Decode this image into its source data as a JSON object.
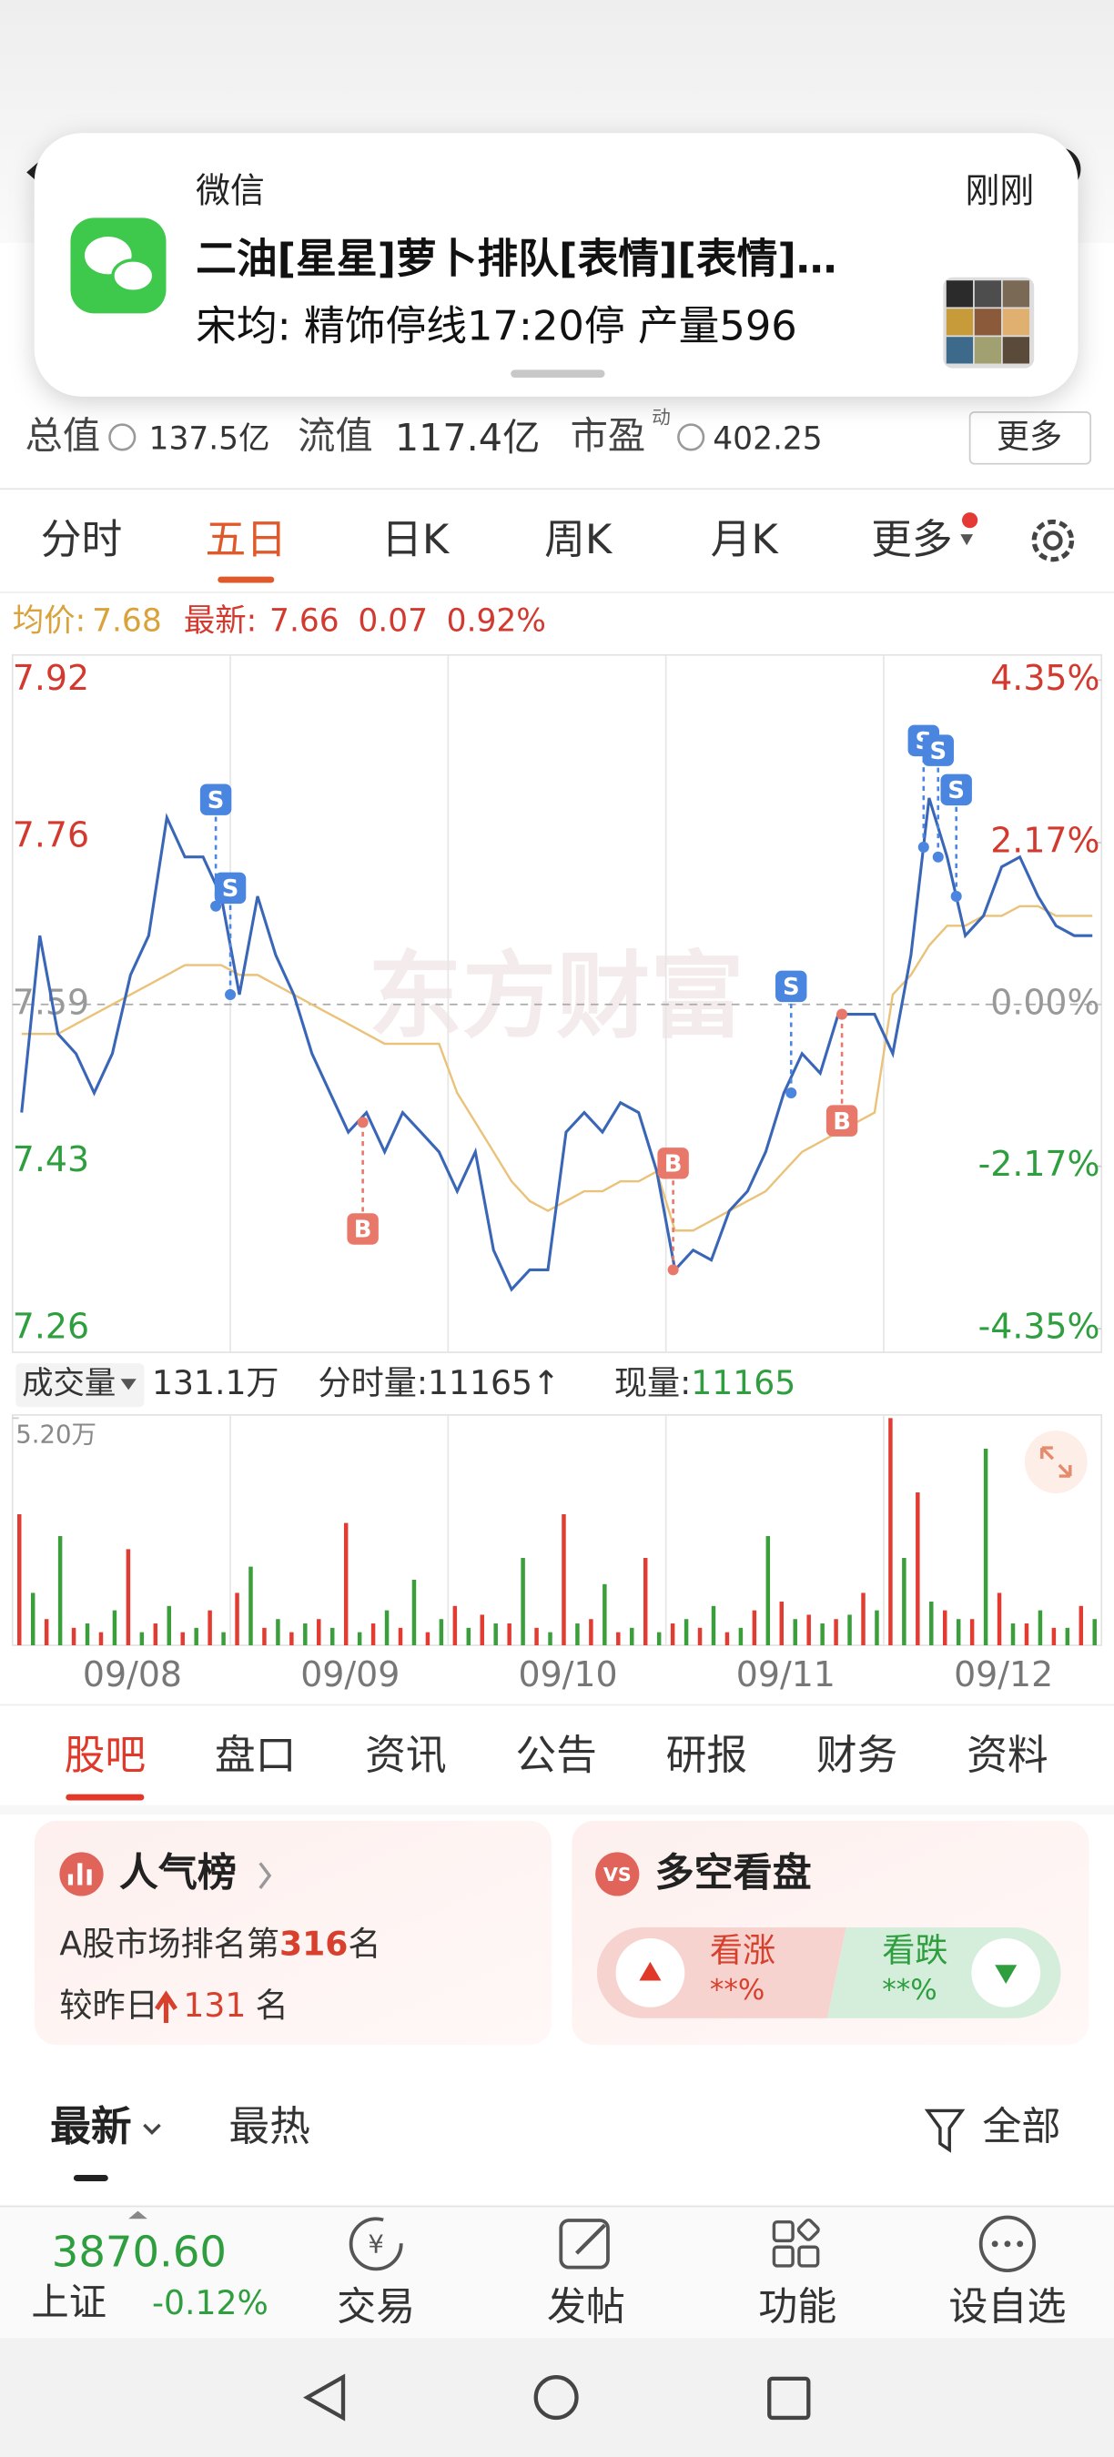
{
  "notification": {
    "app": "微信",
    "time": "刚刚",
    "title": "二油[星星]萝卜排队[表情][表情]…",
    "body": "宋均: 精饰停线17:20停 产量596"
  },
  "stats": {
    "total_label": "总值",
    "total_value": "137.5亿",
    "float_label": "流值",
    "float_value": "117.4亿",
    "pe_label": "市盈",
    "pe_sup": "动",
    "pe_value": "402.25",
    "more": "更多"
  },
  "tabs": {
    "items": [
      "分时",
      "五日",
      "日K",
      "周K",
      "月K",
      "更多"
    ],
    "active": 1
  },
  "quote": {
    "avg_label": "均价:",
    "avg": "7.68",
    "last_label": "最新:",
    "last": "7.66",
    "change": "0.07",
    "pct": "0.92%"
  },
  "watermark": "东方财富",
  "chart_data": [
    {
      "type": "line",
      "days": [
        "09/08",
        "09/09",
        "09/10",
        "09/11",
        "09/12"
      ],
      "series": [
        {
          "color": "#3a66b8",
          "values": [
            7.48,
            7.66,
            7.56,
            7.54,
            7.5,
            7.54,
            7.62,
            7.66,
            7.78,
            7.74,
            7.74,
            7.7,
            7.6,
            7.7,
            7.64,
            7.6,
            7.54,
            7.5,
            7.46,
            7.48,
            7.44,
            7.48,
            7.46,
            7.44,
            7.4,
            7.44,
            7.34,
            7.3,
            7.32,
            7.32,
            7.46,
            7.48,
            7.46,
            7.49,
            7.48,
            7.42,
            7.32,
            7.34,
            7.33,
            7.38,
            7.4,
            7.44,
            7.5,
            7.54,
            7.52,
            7.58,
            7.58,
            7.58,
            7.54,
            7.64,
            7.8,
            7.74,
            7.66,
            7.68,
            7.73,
            7.74,
            7.7,
            7.67,
            7.66,
            7.66
          ]
        },
        {
          "color": "#eac27a",
          "values": [
            7.56,
            7.56,
            7.56,
            7.57,
            7.58,
            7.59,
            7.6,
            7.61,
            7.62,
            7.63,
            7.63,
            7.63,
            7.62,
            7.62,
            7.61,
            7.6,
            7.59,
            7.58,
            7.57,
            7.56,
            7.55,
            7.55,
            7.55,
            7.55,
            7.5,
            7.47,
            7.44,
            7.41,
            7.39,
            7.38,
            7.39,
            7.4,
            7.4,
            7.41,
            7.41,
            7.42,
            7.36,
            7.36,
            7.37,
            7.38,
            7.39,
            7.4,
            7.42,
            7.44,
            7.45,
            7.46,
            7.47,
            7.48,
            7.6,
            7.62,
            7.65,
            7.67,
            7.67,
            7.68,
            7.68,
            7.69,
            7.69,
            7.68,
            7.68,
            7.68
          ]
        }
      ],
      "ylim": [
        7.26,
        7.92
      ],
      "yticks": [
        7.26,
        7.43,
        7.59,
        7.76,
        7.92
      ],
      "y2lim": [
        -4.35,
        4.35
      ],
      "y2ticks": [
        {
          "value": -4.35,
          "label": "-4.35%"
        },
        {
          "value": -2.17,
          "label": "-2.17%"
        },
        {
          "value": 0,
          "label": "0.00%"
        },
        {
          "value": 2.17,
          "label": "2.17%"
        },
        {
          "value": 4.35,
          "label": "4.35%"
        }
      ],
      "markers": [
        {
          "label": "S",
          "index": 10.7,
          "value": 7.69,
          "color": "#4a86e0",
          "placement": "above"
        },
        {
          "label": "S",
          "index": 11.5,
          "value": 7.6,
          "color": "#4a86e0",
          "placement": "above"
        },
        {
          "label": "B",
          "index": 18.8,
          "value": 7.47,
          "color": "#e8786a",
          "placement": "below"
        },
        {
          "label": "B",
          "index": 35.9,
          "value": 7.32,
          "color": "#e8786a",
          "placement": "above"
        },
        {
          "label": "S",
          "index": 42.4,
          "value": 7.5,
          "color": "#4a86e0",
          "placement": "above"
        },
        {
          "label": "B",
          "index": 45.2,
          "value": 7.58,
          "color": "#e8786a",
          "placement": "below"
        },
        {
          "label": "S",
          "index": 49.7,
          "value": 7.75,
          "color": "#4a86e0",
          "placement": "above"
        },
        {
          "label": "S",
          "index": 50.5,
          "value": 7.74,
          "color": "#4a86e0",
          "placement": "above"
        },
        {
          "label": "S",
          "index": 51.5,
          "value": 7.7,
          "color": "#4a86e0",
          "placement": "above"
        }
      ]
    },
    {
      "type": "bar",
      "series": [
        {
          "color": "#e23c32",
          "values": [
            30000,
            6000,
            4000,
            3000,
            22000,
            5000,
            3000,
            8000,
            12000,
            4000,
            3000,
            6000,
            28000,
            5000,
            4000,
            3000,
            9000,
            7000,
            5000,
            4000,
            30000,
            6000,
            3000,
            20000,
            5000,
            4000,
            3000,
            8000,
            10000,
            7000,
            6000,
            12000,
            52000,
            35000,
            8000,
            6000,
            12000,
            5000,
            4000,
            9000
          ]
        },
        {
          "color": "#3a9e3a",
          "values": [
            12000,
            25000,
            5000,
            8000,
            3000,
            9000,
            4000,
            3000,
            18000,
            6000,
            5000,
            4000,
            3000,
            8000,
            15000,
            6000,
            4000,
            5000,
            20000,
            3000,
            5000,
            14000,
            4000,
            3000,
            6000,
            9000,
            4000,
            25000,
            6000,
            5000,
            7000,
            8000,
            20000,
            10000,
            6000,
            45000,
            5000,
            8000,
            4000,
            6000
          ]
        }
      ],
      "ylim": [
        0,
        52000
      ],
      "yticks": [
        {
          "value": 52000,
          "label": "5.20万"
        }
      ]
    }
  ],
  "volume_info": {
    "label": "成交量",
    "total": "131.1万",
    "current": "分时量:11165↑",
    "now_label": "现量:",
    "now_value": "11165"
  },
  "section_tabs": {
    "items": [
      "股吧",
      "盘口",
      "资讯",
      "公告",
      "研报",
      "财务",
      "资料"
    ],
    "active": 0
  },
  "popularity": {
    "title": "人气榜",
    "prefix": "A股市场排名第",
    "rank": "316",
    "suffix": "名",
    "compare": "较昨日",
    "change": "131",
    "change_suffix": "名"
  },
  "sentiment": {
    "title": "多空看盘",
    "up": "看涨",
    "up_value": "**%",
    "down": "看跌",
    "down_value": "**%"
  },
  "feed_tabs": {
    "items": [
      "最新",
      "最热"
    ],
    "active": 0,
    "filter": "全部"
  },
  "index_quote": {
    "value": "3870.60",
    "name": "上证",
    "change": "-0.12%"
  },
  "nav": [
    "交易",
    "发帖",
    "功能",
    "设自选"
  ]
}
